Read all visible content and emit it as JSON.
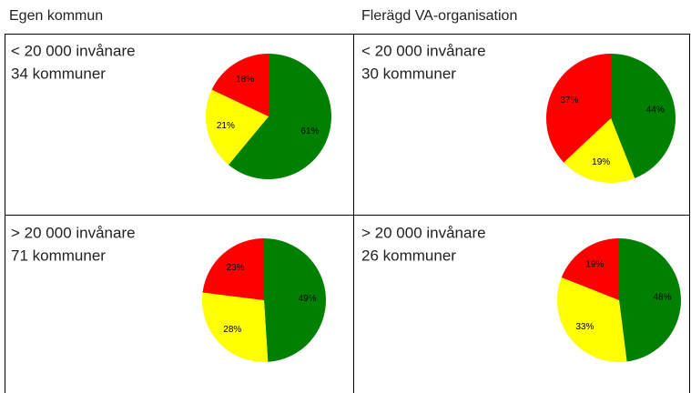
{
  "columns": [
    "Egen kommun",
    "Flerägd VA-organisation"
  ],
  "chart_data": [
    {
      "type": "pie",
      "title": "< 20 000 invånare",
      "subtitle": "34  kommuner",
      "values": [
        61,
        21,
        18
      ],
      "value_labels": [
        "61%",
        "21%",
        "18%"
      ],
      "colors": [
        "#008000",
        "#ffff00",
        "#ff0000"
      ]
    },
    {
      "type": "pie",
      "title": "< 20 000 invånare",
      "subtitle": "30 kommuner",
      "values": [
        44,
        19,
        37
      ],
      "value_labels": [
        "44%",
        "19%",
        "37%"
      ],
      "colors": [
        "#008000",
        "#ffff00",
        "#ff0000"
      ]
    },
    {
      "type": "pie",
      "title": "> 20 000 invånare",
      "subtitle": "71 kommuner",
      "values": [
        49,
        28,
        23
      ],
      "value_labels": [
        "49%",
        "28%",
        "23%"
      ],
      "colors": [
        "#008000",
        "#ffff00",
        "#ff0000"
      ]
    },
    {
      "type": "pie",
      "title": "> 20 000 invånare",
      "subtitle": "26 kommuner",
      "values": [
        48,
        33,
        19
      ],
      "value_labels": [
        "48%",
        "33%",
        "19%"
      ],
      "colors": [
        "#008000",
        "#ffff00",
        "#ff0000"
      ]
    }
  ]
}
